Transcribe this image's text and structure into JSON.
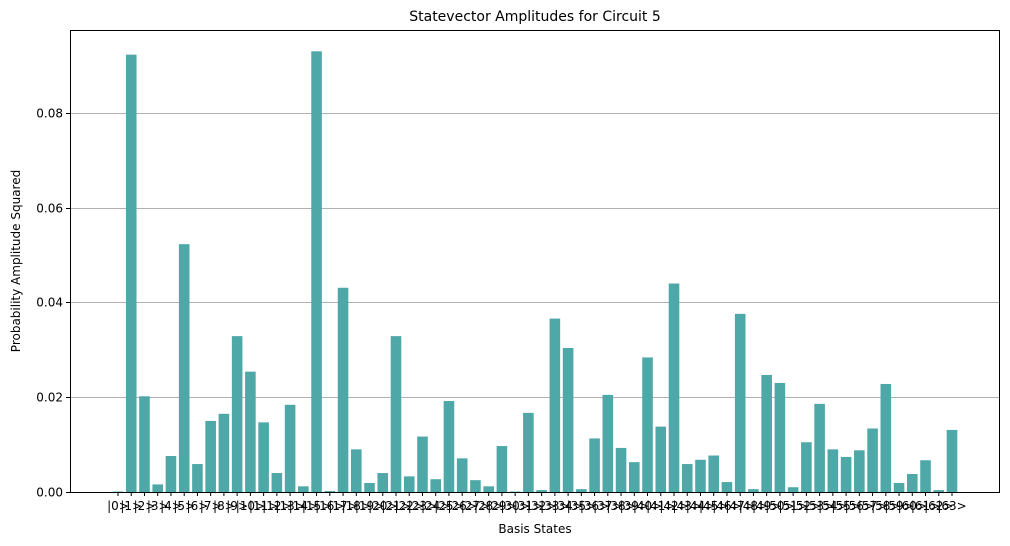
{
  "chart_data": {
    "type": "bar",
    "title": "Statevector Amplitudes for Circuit 5",
    "xlabel": "Basis States",
    "ylabel": "Probability Amplitude Squared",
    "ylim": [
      0,
      0.0975
    ],
    "yticks": [
      0.0,
      0.02,
      0.04,
      0.06,
      0.08
    ],
    "ytick_labels": [
      "0.00",
      "0.02",
      "0.04",
      "0.06",
      "0.08"
    ],
    "grid": "y",
    "bar_color": "#4fa8a8",
    "categories": [
      "|0>",
      "|1>",
      "|2>",
      "|3>",
      "|4>",
      "|5>",
      "|6>",
      "|7>",
      "|8>",
      "|9>",
      "|10>",
      "|11>",
      "|12>",
      "|13>",
      "|14>",
      "|15>",
      "|16>",
      "|17>",
      "|18>",
      "|19>",
      "|20>",
      "|21>",
      "|22>",
      "|23>",
      "|24>",
      "|25>",
      "|26>",
      "|27>",
      "|28>",
      "|29>",
      "|30>",
      "|31>",
      "|32>",
      "|33>",
      "|34>",
      "|35>",
      "|36>",
      "|37>",
      "|38>",
      "|39>",
      "|40>",
      "|41>",
      "|42>",
      "|43>",
      "|44>",
      "|45>",
      "|46>",
      "|47>",
      "|48>",
      "|49>",
      "|50>",
      "|51>",
      "|52>",
      "|53>",
      "|54>",
      "|55>",
      "|56>",
      "|57>",
      "|58>",
      "|59>",
      "|60>",
      "|61>",
      "|62>",
      "|63>"
    ],
    "values": [
      0.0001,
      0.0923,
      0.0202,
      0.0016,
      0.0076,
      0.0523,
      0.0059,
      0.015,
      0.0165,
      0.0329,
      0.0254,
      0.0147,
      0.004,
      0.0184,
      0.0012,
      0.093,
      0.0002,
      0.0431,
      0.009,
      0.0019,
      0.004,
      0.0329,
      0.0033,
      0.0117,
      0.0027,
      0.0192,
      0.0071,
      0.0025,
      0.0012,
      0.0097,
      0.0001,
      0.0167,
      0.0004,
      0.0366,
      0.0304,
      0.0006,
      0.0113,
      0.0205,
      0.0093,
      0.0063,
      0.0284,
      0.0138,
      0.044,
      0.0059,
      0.0068,
      0.0077,
      0.0021,
      0.0376,
      0.0006,
      0.0247,
      0.023,
      0.001,
      0.0105,
      0.0186,
      0.009,
      0.0074,
      0.0088,
      0.0134,
      0.0228,
      0.0019,
      0.0038,
      0.0067,
      0.0004,
      0.0131
    ]
  }
}
